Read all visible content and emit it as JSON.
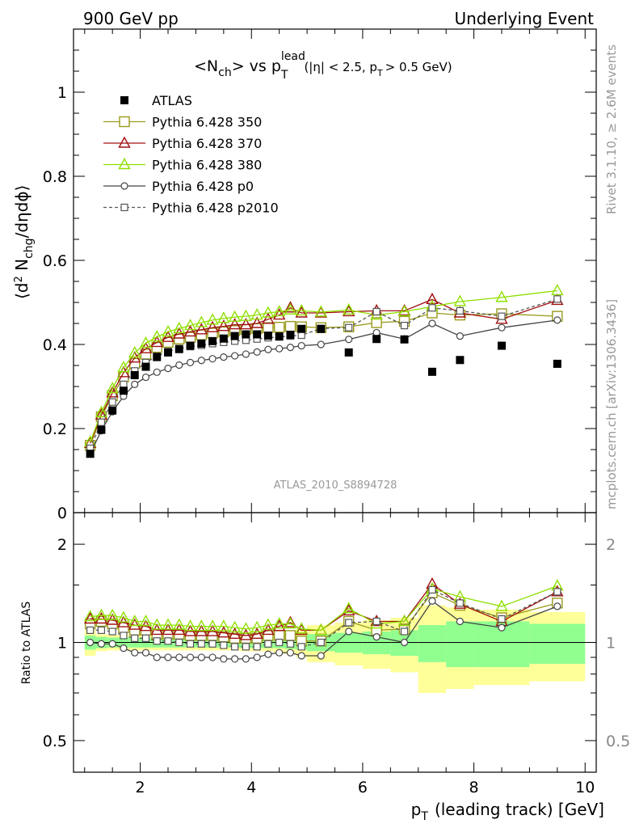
{
  "header": {
    "left": "900 GeV pp",
    "right": "Underlying Event"
  },
  "side_labels": {
    "rivet": "Rivet 3.1.10, ≥ 2.6M events",
    "mcplots": "mcplots.cern.ch [arXiv:1306.3436]"
  },
  "colors": {
    "atlas": "#000000",
    "p350": "#9a9a1c",
    "p370": "#a01010",
    "p380": "#8fe000",
    "p0": "#444444",
    "p2010": "#555555",
    "band_stat": "#90ff90",
    "band_tot": "#ffff99"
  },
  "chart_data": [
    {
      "type": "scatter",
      "panel": "main",
      "title": "<N_ch> vs p_T^lead (|η| < 2.5, p_T > 0.5 GeV)",
      "title_parts": {
        "lt": "<N",
        "ch": "ch",
        "vs": "> vs p",
        "lead": "lead",
        "T": "T",
        "cond1": "(|η| < 2.5, p",
        "cond2": "> 0.5 GeV)"
      },
      "ylabel_parts": {
        "a": "⟨d",
        "two": "2",
        "b": " N",
        "chg": "chg",
        "c": "/dηdϕ⟩"
      },
      "watermark": "ATLAS_2010_S8894728",
      "xlim": [
        0.8,
        10.2
      ],
      "ylim": [
        0,
        1.15
      ],
      "y_ticks": [
        "0",
        "0.2",
        "0.4",
        "0.6",
        "0.8",
        "1"
      ],
      "legend_position": "top-left",
      "x": [
        1.1,
        1.3,
        1.5,
        1.7,
        1.9,
        2.1,
        2.3,
        2.5,
        2.7,
        2.9,
        3.1,
        3.3,
        3.5,
        3.7,
        3.9,
        4.1,
        4.3,
        4.5,
        4.7,
        4.9,
        5.25,
        5.75,
        6.25,
        6.75,
        7.25,
        7.75,
        8.5,
        9.5
      ],
      "series": [
        {
          "name": "ATLAS",
          "key": "atlas",
          "marker": "filled-square",
          "values": [
            0.14,
            0.197,
            0.243,
            0.29,
            0.327,
            0.347,
            0.37,
            0.381,
            0.389,
            0.397,
            0.402,
            0.408,
            0.414,
            0.42,
            0.424,
            0.424,
            0.421,
            0.419,
            0.423,
            0.437,
            0.437,
            0.381,
            0.413,
            0.412,
            0.335,
            0.363,
            0.397,
            0.354
          ]
        },
        {
          "name": "Pythia 6.428 350",
          "key": "p350",
          "marker": "open-square",
          "values": [
            0.16,
            0.228,
            0.278,
            0.323,
            0.355,
            0.377,
            0.393,
            0.405,
            0.413,
            0.417,
            0.423,
            0.427,
            0.43,
            0.433,
            0.436,
            0.438,
            0.44,
            0.441,
            0.443,
            0.442,
            0.44,
            0.442,
            0.452,
            0.455,
            0.475,
            0.47,
            0.473,
            0.467
          ]
        },
        {
          "name": "Pythia 6.428 370",
          "key": "p370",
          "marker": "open-triangle",
          "values": [
            0.165,
            0.232,
            0.285,
            0.333,
            0.368,
            0.39,
            0.405,
            0.417,
            0.425,
            0.43,
            0.435,
            0.44,
            0.443,
            0.447,
            0.447,
            0.45,
            0.46,
            0.47,
            0.487,
            0.475,
            0.475,
            0.478,
            0.48,
            0.48,
            0.507,
            0.475,
            0.46,
            0.505
          ]
        },
        {
          "name": "Pythia 6.428 380",
          "key": "p380",
          "marker": "open-triangle",
          "values": [
            0.168,
            0.238,
            0.295,
            0.345,
            0.38,
            0.403,
            0.418,
            0.43,
            0.438,
            0.445,
            0.452,
            0.458,
            0.462,
            0.465,
            0.467,
            0.47,
            0.475,
            0.478,
            0.482,
            0.48,
            0.477,
            0.482,
            0.47,
            0.478,
            0.49,
            0.502,
            0.512,
            0.528
          ]
        },
        {
          "name": "Pythia 6.428 p0",
          "key": "p0",
          "marker": "open-circle",
          "values": [
            0.14,
            0.195,
            0.24,
            0.277,
            0.305,
            0.322,
            0.334,
            0.343,
            0.351,
            0.357,
            0.362,
            0.366,
            0.37,
            0.373,
            0.377,
            0.382,
            0.388,
            0.39,
            0.393,
            0.397,
            0.4,
            0.412,
            0.428,
            0.413,
            0.45,
            0.42,
            0.44,
            0.458
          ]
        },
        {
          "name": "Pythia 6.428 p2010",
          "key": "p2010",
          "marker": "open-square-small",
          "dashed": true,
          "values": [
            0.153,
            0.215,
            0.263,
            0.305,
            0.337,
            0.357,
            0.372,
            0.383,
            0.39,
            0.395,
            0.398,
            0.402,
            0.405,
            0.408,
            0.41,
            0.413,
            0.416,
            0.418,
            0.42,
            0.422,
            0.438,
            0.44,
            0.478,
            0.445,
            0.487,
            0.48,
            0.467,
            0.508
          ]
        }
      ]
    },
    {
      "type": "scatter",
      "panel": "ratio",
      "ylabel": "Ratio to ATLAS",
      "xlabel_parts": {
        "p": "p",
        "T": "T",
        "rest": "(leading track) [GeV]"
      },
      "x_ticks": [
        "2",
        "4",
        "6",
        "8",
        "10"
      ],
      "y_ticks": [
        "0.5",
        "1",
        "2"
      ],
      "log_scale": true,
      "ylim": [
        0.4,
        2.5
      ],
      "band_edges": [
        1.0,
        1.2,
        1.4,
        1.6,
        1.8,
        2.0,
        2.2,
        2.4,
        2.6,
        2.8,
        3.0,
        3.2,
        3.4,
        3.6,
        3.8,
        4.0,
        4.2,
        4.4,
        4.6,
        4.8,
        5.0,
        5.5,
        6.0,
        6.5,
        7.0,
        7.5,
        8.0,
        9.0,
        10.0
      ],
      "band_stat": [
        0.05,
        0.04,
        0.035,
        0.035,
        0.035,
        0.035,
        0.035,
        0.035,
        0.035,
        0.035,
        0.035,
        0.035,
        0.035,
        0.035,
        0.04,
        0.04,
        0.04,
        0.04,
        0.045,
        0.05,
        0.06,
        0.07,
        0.08,
        0.09,
        0.13,
        0.16,
        0.16,
        0.14
      ],
      "band_total": [
        0.09,
        0.06,
        0.055,
        0.055,
        0.055,
        0.055,
        0.055,
        0.055,
        0.055,
        0.055,
        0.055,
        0.055,
        0.055,
        0.055,
        0.06,
        0.06,
        0.06,
        0.07,
        0.08,
        0.1,
        0.13,
        0.15,
        0.17,
        0.19,
        0.3,
        0.28,
        0.26,
        0.24
      ],
      "x": [
        1.1,
        1.3,
        1.5,
        1.7,
        1.9,
        2.1,
        2.3,
        2.5,
        2.7,
        2.9,
        3.1,
        3.3,
        3.5,
        3.7,
        3.9,
        4.1,
        4.3,
        4.5,
        4.7,
        4.9,
        5.25,
        5.75,
        6.25,
        6.75,
        7.25,
        7.75,
        8.5,
        9.5
      ],
      "series": [
        {
          "name": "Pythia 6.428 350",
          "key": "p350",
          "values": [
            1.14,
            1.16,
            1.14,
            1.11,
            1.09,
            1.09,
            1.06,
            1.06,
            1.06,
            1.05,
            1.05,
            1.05,
            1.04,
            1.03,
            1.03,
            1.03,
            1.05,
            1.05,
            1.05,
            1.01,
            1.01,
            1.16,
            1.09,
            1.1,
            1.42,
            1.3,
            1.19,
            1.32
          ]
        },
        {
          "name": "Pythia 6.428 370",
          "key": "p370",
          "values": [
            1.18,
            1.18,
            1.17,
            1.15,
            1.13,
            1.12,
            1.09,
            1.09,
            1.09,
            1.08,
            1.08,
            1.08,
            1.07,
            1.06,
            1.05,
            1.06,
            1.09,
            1.12,
            1.15,
            1.09,
            1.09,
            1.25,
            1.16,
            1.16,
            1.51,
            1.31,
            1.16,
            1.43
          ]
        },
        {
          "name": "Pythia 6.428 380",
          "key": "p380",
          "values": [
            1.2,
            1.21,
            1.21,
            1.19,
            1.16,
            1.16,
            1.13,
            1.13,
            1.13,
            1.12,
            1.12,
            1.12,
            1.12,
            1.11,
            1.1,
            1.11,
            1.13,
            1.14,
            1.14,
            1.1,
            1.09,
            1.27,
            1.14,
            1.16,
            1.46,
            1.38,
            1.29,
            1.49
          ]
        },
        {
          "name": "Pythia 6.428 p0",
          "key": "p0",
          "values": [
            1.0,
            0.99,
            0.99,
            0.96,
            0.93,
            0.93,
            0.9,
            0.9,
            0.9,
            0.9,
            0.9,
            0.9,
            0.89,
            0.89,
            0.89,
            0.9,
            0.92,
            0.93,
            0.93,
            0.91,
            0.91,
            1.08,
            1.04,
            1.0,
            1.34,
            1.16,
            1.11,
            1.29
          ]
        },
        {
          "name": "Pythia 6.428 p2010",
          "key": "p2010",
          "dashed": true,
          "values": [
            1.09,
            1.09,
            1.08,
            1.05,
            1.03,
            1.03,
            1.01,
            1.01,
            1.0,
            0.99,
            0.99,
            0.99,
            0.98,
            0.97,
            0.97,
            0.97,
            0.99,
            1.0,
            0.99,
            0.97,
            1.0,
            1.15,
            1.16,
            1.08,
            1.45,
            1.32,
            1.18,
            1.43
          ]
        }
      ]
    }
  ]
}
